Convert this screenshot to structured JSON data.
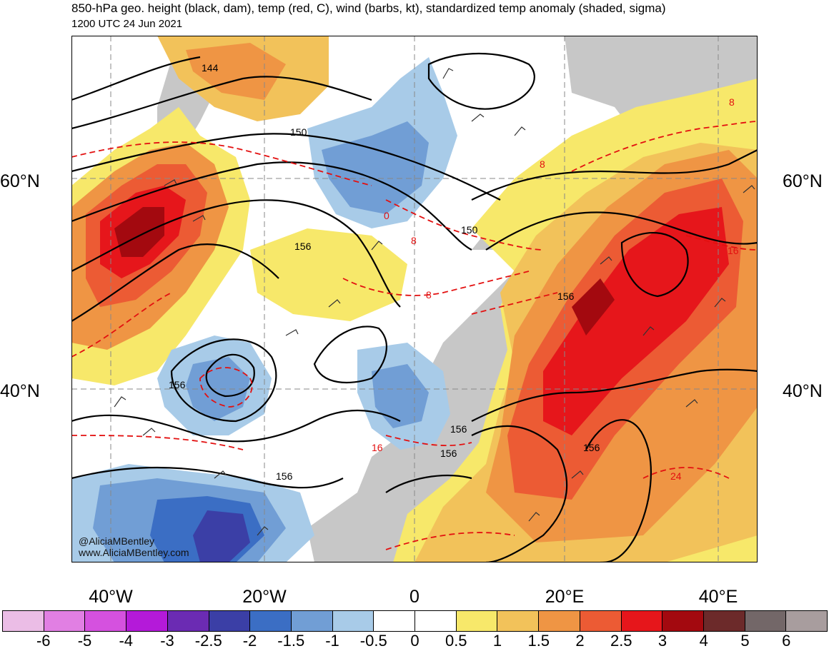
{
  "title": "850-hPa geo. height (black, dam), temp (red, C), wind (barbs, kt), standardized temp anomaly (shaded, sigma)",
  "subtitle": "1200 UTC 24 Jun 2021",
  "credit": {
    "handle": "@AliciaMBentley",
    "website": "www.AliciaMBentley.com"
  },
  "lat_labels": [
    "60°N",
    "40°N"
  ],
  "lon_labels": [
    "40°W",
    "20°W",
    "0",
    "20°E",
    "40°E"
  ],
  "contour_labels": {
    "height": [
      "144",
      "150",
      "150",
      "156",
      "156",
      "156",
      "156",
      "156",
      "156",
      "156"
    ],
    "temperature": [
      "0",
      "8",
      "8",
      "8",
      "8",
      "16",
      "16",
      "24"
    ]
  },
  "colorbar": {
    "labels": [
      "-6",
      "-5",
      "-4",
      "-3",
      "-2.5",
      "-2",
      "-1.5",
      "-1",
      "-0.5",
      "0",
      "0.5",
      "1",
      "1.5",
      "2",
      "2.5",
      "3",
      "4",
      "5",
      "6"
    ],
    "colors": [
      "#ebbde6",
      "#e17fe3",
      "#d551df",
      "#b41ad9",
      "#6b2bb3",
      "#3b3fa6",
      "#3b6ec4",
      "#719ed5",
      "#a8cbe8",
      "#ffffff",
      "#ffffff",
      "#f7e86a",
      "#f2c25a",
      "#ef9544",
      "#ec5b34",
      "#e6161b",
      "#a3090f",
      "#6c2a2a",
      "#736768",
      "#a89d9e"
    ]
  },
  "map_colors": {
    "ocean": "#ffffff",
    "land_gray": "#c7c7c7",
    "height_contour": "#000000",
    "temp_contour": "#e31010",
    "barb": "#333333"
  }
}
